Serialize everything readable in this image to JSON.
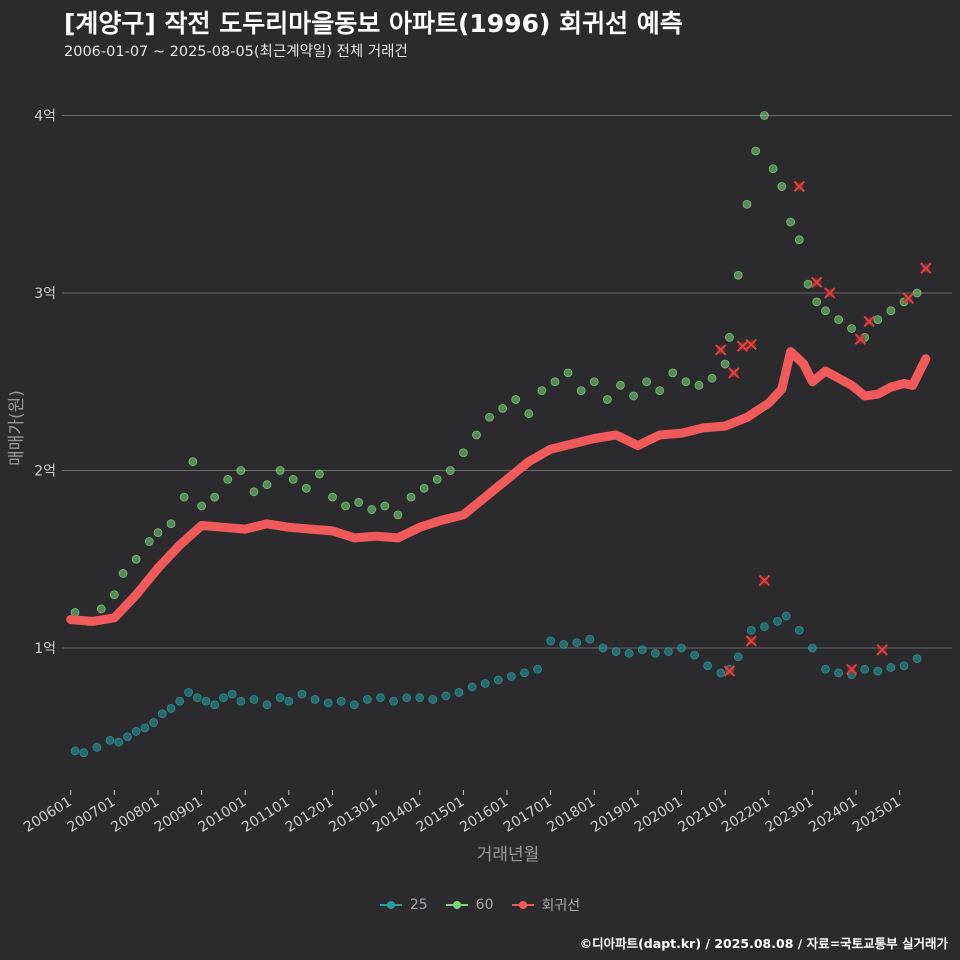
{
  "header": {
    "title": "[계양구] 작전 도두리마을동보 아파트(1996) 회귀선 예측",
    "subtitle": "2006-01-07 ~ 2025-08-05(최근계약일) 전체 거래건"
  },
  "credit": "©디아파트(dapt.kr) / 2025.08.08 / 자료=국토교통부 실거래가",
  "legend": [
    {
      "label": "25",
      "color": "#2a9d9d",
      "kind": "point"
    },
    {
      "label": "60",
      "color": "#7dd87d",
      "kind": "point"
    },
    {
      "label": "회귀선",
      "color": "#f05a5a",
      "kind": "line"
    }
  ],
  "chart_data": {
    "type": "scatter",
    "title": "[계양구] 작전 도두리마을동보 아파트(1996) 회귀선 예측",
    "xlabel": "거래년월",
    "ylabel": "매매가(원)",
    "x_unit": "decimal year",
    "xlim": [
      2005.8,
      2026.2
    ],
    "ylim": [
      0.2,
      4.2
    ],
    "y_unit": "억",
    "x_ticks": [
      {
        "value": 2006.0,
        "label": "200601"
      },
      {
        "value": 2007.0,
        "label": "200701"
      },
      {
        "value": 2008.0,
        "label": "200801"
      },
      {
        "value": 2009.0,
        "label": "200901"
      },
      {
        "value": 2010.0,
        "label": "201001"
      },
      {
        "value": 2011.0,
        "label": "201101"
      },
      {
        "value": 2012.0,
        "label": "201201"
      },
      {
        "value": 2013.0,
        "label": "201301"
      },
      {
        "value": 2014.0,
        "label": "201401"
      },
      {
        "value": 2015.0,
        "label": "201501"
      },
      {
        "value": 2016.0,
        "label": "201601"
      },
      {
        "value": 2017.0,
        "label": "201701"
      },
      {
        "value": 2018.0,
        "label": "201801"
      },
      {
        "value": 2019.0,
        "label": "201901"
      },
      {
        "value": 2020.0,
        "label": "202001"
      },
      {
        "value": 2021.0,
        "label": "202101"
      },
      {
        "value": 2022.0,
        "label": "202201"
      },
      {
        "value": 2023.0,
        "label": "202301"
      },
      {
        "value": 2024.0,
        "label": "202401"
      },
      {
        "value": 2025.0,
        "label": "202501"
      }
    ],
    "y_ticks": [
      {
        "value": 1,
        "label": "1억"
      },
      {
        "value": 2,
        "label": "2억"
      },
      {
        "value": 3,
        "label": "3억"
      },
      {
        "value": 4,
        "label": "4억"
      }
    ],
    "series": [
      {
        "name": "25",
        "color": "#2a9d9d",
        "x": [
          2006.1,
          2006.3,
          2006.6,
          2006.9,
          2007.1,
          2007.3,
          2007.5,
          2007.7,
          2007.9,
          2008.1,
          2008.3,
          2008.5,
          2008.7,
          2008.9,
          2009.1,
          2009.3,
          2009.5,
          2009.7,
          2009.9,
          2010.2,
          2010.5,
          2010.8,
          2011.0,
          2011.3,
          2011.6,
          2011.9,
          2012.2,
          2012.5,
          2012.8,
          2013.1,
          2013.4,
          2013.7,
          2014.0,
          2014.3,
          2014.6,
          2014.9,
          2015.2,
          2015.5,
          2015.8,
          2016.1,
          2016.4,
          2016.7,
          2017.0,
          2017.3,
          2017.6,
          2017.9,
          2018.2,
          2018.5,
          2018.8,
          2019.1,
          2019.4,
          2019.7,
          2020.0,
          2020.3,
          2020.6,
          2020.9,
          2021.1,
          2021.3,
          2021.6,
          2021.9,
          2022.2,
          2022.4,
          2022.7,
          2023.0,
          2023.3,
          2023.6,
          2023.9,
          2024.2,
          2024.5,
          2024.8,
          2025.1,
          2025.4
        ],
        "y": [
          0.42,
          0.41,
          0.44,
          0.48,
          0.47,
          0.5,
          0.53,
          0.55,
          0.58,
          0.63,
          0.66,
          0.7,
          0.75,
          0.72,
          0.7,
          0.68,
          0.72,
          0.74,
          0.7,
          0.71,
          0.68,
          0.72,
          0.7,
          0.74,
          0.71,
          0.69,
          0.7,
          0.68,
          0.71,
          0.72,
          0.7,
          0.72,
          0.72,
          0.71,
          0.73,
          0.75,
          0.78,
          0.8,
          0.82,
          0.84,
          0.86,
          0.88,
          1.04,
          1.02,
          1.03,
          1.05,
          1.0,
          0.98,
          0.97,
          0.99,
          0.97,
          0.98,
          1.0,
          0.96,
          0.9,
          0.86,
          0.88,
          0.95,
          1.1,
          1.12,
          1.15,
          1.18,
          1.1,
          1.0,
          0.88,
          0.86,
          0.85,
          0.88,
          0.87,
          0.89,
          0.9,
          0.94
        ]
      },
      {
        "name": "60",
        "color": "#7dd87d",
        "x": [
          2006.1,
          2006.4,
          2006.7,
          2007.0,
          2007.2,
          2007.5,
          2007.8,
          2008.0,
          2008.3,
          2008.6,
          2008.8,
          2009.0,
          2009.3,
          2009.6,
          2009.9,
          2010.2,
          2010.5,
          2010.8,
          2011.1,
          2011.4,
          2011.7,
          2012.0,
          2012.3,
          2012.6,
          2012.9,
          2013.2,
          2013.5,
          2013.8,
          2014.1,
          2014.4,
          2014.7,
          2015.0,
          2015.3,
          2015.6,
          2015.9,
          2016.2,
          2016.5,
          2016.8,
          2017.1,
          2017.4,
          2017.7,
          2018.0,
          2018.3,
          2018.6,
          2018.9,
          2019.2,
          2019.5,
          2019.8,
          2020.1,
          2020.4,
          2020.7,
          2021.0,
          2021.1,
          2021.3,
          2021.5,
          2021.7,
          2021.9,
          2022.1,
          2022.3,
          2022.5,
          2022.7,
          2022.9,
          2023.1,
          2023.3,
          2023.6,
          2023.9,
          2024.2,
          2024.5,
          2024.8,
          2025.1,
          2025.4
        ],
        "y": [
          1.2,
          1.15,
          1.22,
          1.3,
          1.42,
          1.5,
          1.6,
          1.65,
          1.7,
          1.85,
          2.05,
          1.8,
          1.85,
          1.95,
          2.0,
          1.88,
          1.92,
          2.0,
          1.95,
          1.9,
          1.98,
          1.85,
          1.8,
          1.82,
          1.78,
          1.8,
          1.75,
          1.85,
          1.9,
          1.95,
          2.0,
          2.1,
          2.2,
          2.3,
          2.35,
          2.4,
          2.32,
          2.45,
          2.5,
          2.55,
          2.45,
          2.5,
          2.4,
          2.48,
          2.42,
          2.5,
          2.45,
          2.55,
          2.5,
          2.48,
          2.52,
          2.6,
          2.75,
          3.1,
          3.5,
          3.8,
          4.0,
          3.7,
          3.6,
          3.4,
          3.3,
          3.05,
          2.95,
          2.9,
          2.85,
          2.8,
          2.75,
          2.85,
          2.9,
          2.95,
          3.0
        ]
      }
    ],
    "regression": {
      "name": "회귀선",
      "color": "#f05a5a",
      "x": [
        2006.0,
        2006.5,
        2007.0,
        2007.5,
        2008.0,
        2008.5,
        2009.0,
        2009.5,
        2010.0,
        2010.5,
        2011.0,
        2011.5,
        2012.0,
        2012.5,
        2013.0,
        2013.5,
        2014.0,
        2014.5,
        2015.0,
        2015.5,
        2016.0,
        2016.5,
        2017.0,
        2017.5,
        2018.0,
        2018.5,
        2019.0,
        2019.5,
        2020.0,
        2020.5,
        2021.0,
        2021.5,
        2022.0,
        2022.3,
        2022.5,
        2022.8,
        2023.0,
        2023.3,
        2023.6,
        2023.9,
        2024.2,
        2024.5,
        2024.8,
        2025.1,
        2025.3,
        2025.6
      ],
      "y": [
        1.16,
        1.15,
        1.17,
        1.3,
        1.45,
        1.58,
        1.69,
        1.68,
        1.67,
        1.7,
        1.68,
        1.67,
        1.66,
        1.62,
        1.63,
        1.62,
        1.68,
        1.72,
        1.75,
        1.85,
        1.95,
        2.05,
        2.12,
        2.15,
        2.18,
        2.2,
        2.14,
        2.2,
        2.21,
        2.24,
        2.25,
        2.3,
        2.38,
        2.46,
        2.67,
        2.6,
        2.5,
        2.56,
        2.52,
        2.48,
        2.42,
        2.43,
        2.47,
        2.49,
        2.48,
        2.63
      ]
    },
    "forecast_markers": [
      {
        "x": 2020.9,
        "y": 2.68,
        "series": "60"
      },
      {
        "x": 2021.2,
        "y": 2.55,
        "series": "60"
      },
      {
        "x": 2021.4,
        "y": 2.7,
        "series": "60"
      },
      {
        "x": 2021.6,
        "y": 2.71,
        "series": "60"
      },
      {
        "x": 2022.7,
        "y": 3.6,
        "series": "60"
      },
      {
        "x": 2023.1,
        "y": 3.06,
        "series": "60"
      },
      {
        "x": 2023.4,
        "y": 3.0,
        "series": "60"
      },
      {
        "x": 2024.1,
        "y": 2.74,
        "series": "60"
      },
      {
        "x": 2024.3,
        "y": 2.84,
        "series": "60"
      },
      {
        "x": 2025.2,
        "y": 2.97,
        "series": "60"
      },
      {
        "x": 2025.6,
        "y": 3.14,
        "series": "60"
      },
      {
        "x": 2021.1,
        "y": 0.87,
        "series": "25"
      },
      {
        "x": 2021.6,
        "y": 1.04,
        "series": "25"
      },
      {
        "x": 2021.9,
        "y": 1.38,
        "series": "25"
      },
      {
        "x": 2023.9,
        "y": 0.88,
        "series": "25"
      },
      {
        "x": 2024.6,
        "y": 0.99,
        "series": "25"
      }
    ]
  }
}
